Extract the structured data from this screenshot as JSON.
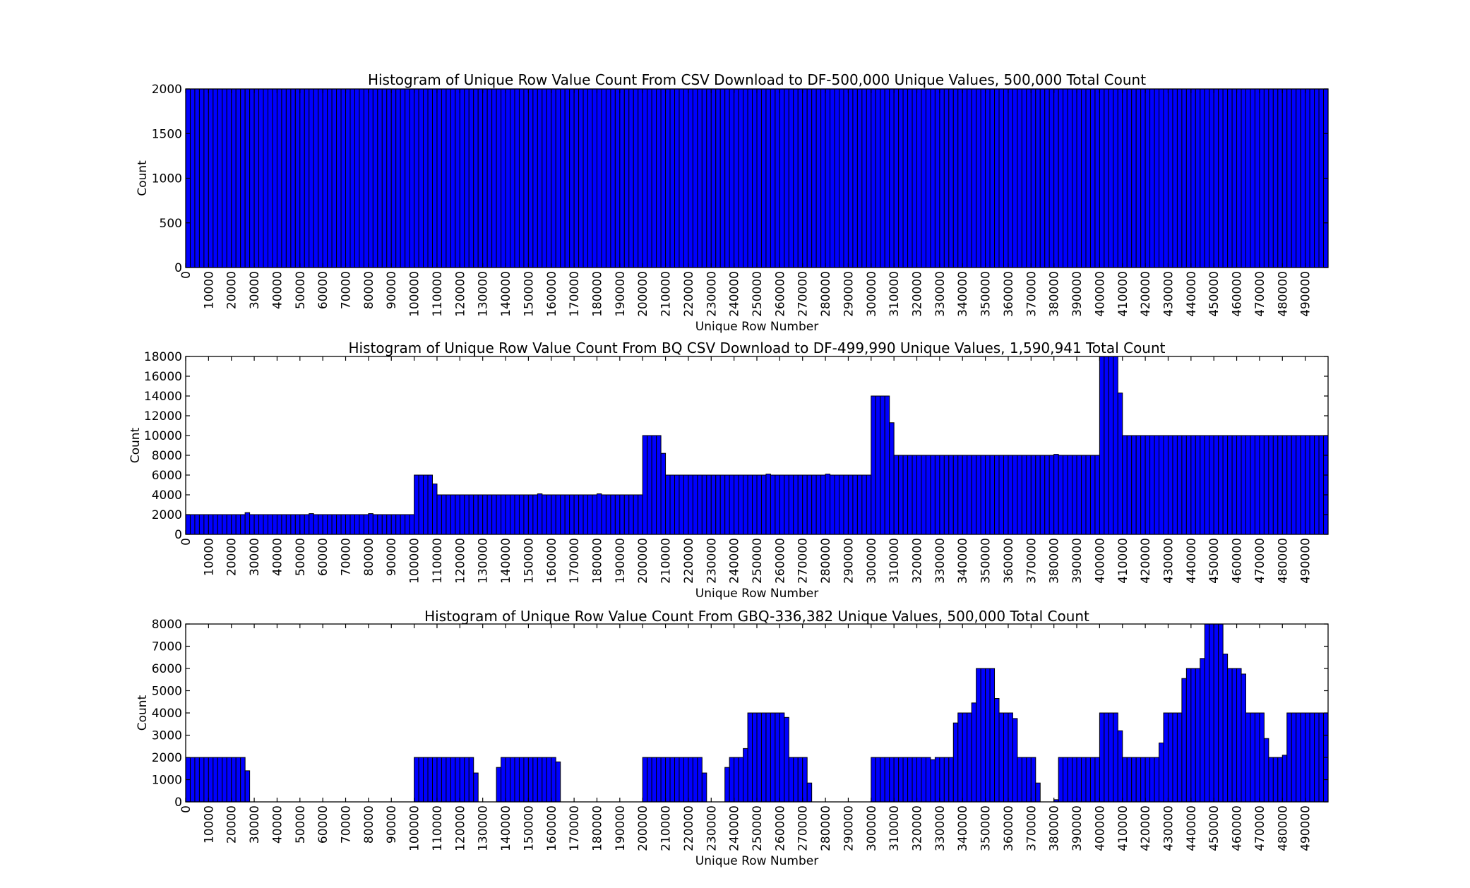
{
  "chart_data": [
    {
      "type": "bar",
      "title": "Histogram of Unique Row Value Count From CSV Download to DF-500,000 Unique Values, 500,000 Total Count",
      "xlabel": "Unique Row Number",
      "ylabel": "Count",
      "xlim": [
        0,
        500000
      ],
      "ylim": [
        0,
        2000
      ],
      "bin_width": 2000,
      "x_ticks": [
        0,
        10000,
        20000,
        30000,
        40000,
        50000,
        60000,
        70000,
        80000,
        90000,
        100000,
        110000,
        120000,
        130000,
        140000,
        150000,
        160000,
        170000,
        180000,
        190000,
        200000,
        210000,
        220000,
        230000,
        240000,
        250000,
        260000,
        270000,
        280000,
        290000,
        300000,
        310000,
        320000,
        330000,
        340000,
        350000,
        360000,
        370000,
        380000,
        390000,
        400000,
        410000,
        420000,
        430000,
        440000,
        450000,
        460000,
        470000,
        480000,
        490000
      ],
      "y_ticks": [
        0,
        500,
        1000,
        1500,
        2000
      ],
      "segments": [
        {
          "from": 0,
          "to": 500000,
          "value": 2000
        }
      ]
    },
    {
      "type": "bar",
      "title": "Histogram of Unique Row Value Count From BQ CSV Download to DF-499,990 Unique Values, 1,590,941 Total Count",
      "xlabel": "Unique Row Number",
      "ylabel": "Count",
      "xlim": [
        0,
        500000
      ],
      "ylim": [
        0,
        18000
      ],
      "bin_width": 2000,
      "x_ticks": [
        0,
        10000,
        20000,
        30000,
        40000,
        50000,
        60000,
        70000,
        80000,
        90000,
        100000,
        110000,
        120000,
        130000,
        140000,
        150000,
        160000,
        170000,
        180000,
        190000,
        200000,
        210000,
        220000,
        230000,
        240000,
        250000,
        260000,
        270000,
        280000,
        290000,
        300000,
        310000,
        320000,
        330000,
        340000,
        350000,
        360000,
        370000,
        380000,
        390000,
        400000,
        410000,
        420000,
        430000,
        440000,
        450000,
        460000,
        470000,
        480000,
        490000
      ],
      "y_ticks": [
        0,
        2000,
        4000,
        6000,
        8000,
        10000,
        12000,
        14000,
        16000,
        18000
      ],
      "segments": [
        {
          "from": 0,
          "to": 26000,
          "value": 2000
        },
        {
          "from": 26000,
          "to": 28000,
          "value": 2200
        },
        {
          "from": 28000,
          "to": 54000,
          "value": 2000
        },
        {
          "from": 54000,
          "to": 56000,
          "value": 2100
        },
        {
          "from": 56000,
          "to": 80000,
          "value": 2000
        },
        {
          "from": 80000,
          "to": 82000,
          "value": 2100
        },
        {
          "from": 82000,
          "to": 100000,
          "value": 2000
        },
        {
          "from": 100000,
          "to": 108000,
          "value": 6000
        },
        {
          "from": 108000,
          "to": 110000,
          "value": 5100
        },
        {
          "from": 110000,
          "to": 154000,
          "value": 4000
        },
        {
          "from": 154000,
          "to": 156000,
          "value": 4100
        },
        {
          "from": 156000,
          "to": 180000,
          "value": 4000
        },
        {
          "from": 180000,
          "to": 182000,
          "value": 4100
        },
        {
          "from": 182000,
          "to": 200000,
          "value": 4000
        },
        {
          "from": 200000,
          "to": 208000,
          "value": 10000
        },
        {
          "from": 208000,
          "to": 210000,
          "value": 8200
        },
        {
          "from": 210000,
          "to": 254000,
          "value": 6000
        },
        {
          "from": 254000,
          "to": 256000,
          "value": 6100
        },
        {
          "from": 256000,
          "to": 280000,
          "value": 6000
        },
        {
          "from": 280000,
          "to": 282000,
          "value": 6100
        },
        {
          "from": 282000,
          "to": 300000,
          "value": 6000
        },
        {
          "from": 300000,
          "to": 308000,
          "value": 14000
        },
        {
          "from": 308000,
          "to": 310000,
          "value": 11300
        },
        {
          "from": 310000,
          "to": 380000,
          "value": 8000
        },
        {
          "from": 380000,
          "to": 382000,
          "value": 8100
        },
        {
          "from": 382000,
          "to": 400000,
          "value": 8000
        },
        {
          "from": 400000,
          "to": 408000,
          "value": 18000
        },
        {
          "from": 408000,
          "to": 410000,
          "value": 14300
        },
        {
          "from": 410000,
          "to": 500000,
          "value": 10000
        }
      ]
    },
    {
      "type": "bar",
      "title": "Histogram of Unique Row Value Count From GBQ-336,382 Unique Values, 500,000 Total Count",
      "xlabel": "Unique Row Number",
      "ylabel": "Count",
      "xlim": [
        0,
        500000
      ],
      "ylim": [
        0,
        8000
      ],
      "bin_width": 2000,
      "x_ticks": [
        0,
        10000,
        20000,
        30000,
        40000,
        50000,
        60000,
        70000,
        80000,
        90000,
        100000,
        110000,
        120000,
        130000,
        140000,
        150000,
        160000,
        170000,
        180000,
        190000,
        200000,
        210000,
        220000,
        230000,
        240000,
        250000,
        260000,
        270000,
        280000,
        290000,
        300000,
        310000,
        320000,
        330000,
        340000,
        350000,
        360000,
        370000,
        380000,
        390000,
        400000,
        410000,
        420000,
        430000,
        440000,
        450000,
        460000,
        470000,
        480000,
        490000
      ],
      "y_ticks": [
        0,
        1000,
        2000,
        3000,
        4000,
        5000,
        6000,
        7000,
        8000
      ],
      "segments": [
        {
          "from": 0,
          "to": 26000,
          "value": 2000
        },
        {
          "from": 26000,
          "to": 28000,
          "value": 1400
        },
        {
          "from": 100000,
          "to": 126000,
          "value": 2000
        },
        {
          "from": 126000,
          "to": 128000,
          "value": 1300
        },
        {
          "from": 136000,
          "to": 138000,
          "value": 1550
        },
        {
          "from": 138000,
          "to": 162000,
          "value": 2000
        },
        {
          "from": 162000,
          "to": 164000,
          "value": 1800
        },
        {
          "from": 200000,
          "to": 226000,
          "value": 2000
        },
        {
          "from": 226000,
          "to": 228000,
          "value": 1300
        },
        {
          "from": 236000,
          "to": 238000,
          "value": 1550
        },
        {
          "from": 238000,
          "to": 244000,
          "value": 2000
        },
        {
          "from": 244000,
          "to": 246000,
          "value": 2400
        },
        {
          "from": 246000,
          "to": 262000,
          "value": 4000
        },
        {
          "from": 262000,
          "to": 264000,
          "value": 3800
        },
        {
          "from": 264000,
          "to": 272000,
          "value": 2000
        },
        {
          "from": 272000,
          "to": 274000,
          "value": 850
        },
        {
          "from": 300000,
          "to": 326000,
          "value": 2000
        },
        {
          "from": 326000,
          "to": 328000,
          "value": 1900
        },
        {
          "from": 328000,
          "to": 336000,
          "value": 2000
        },
        {
          "from": 336000,
          "to": 338000,
          "value": 3550
        },
        {
          "from": 338000,
          "to": 344000,
          "value": 4000
        },
        {
          "from": 344000,
          "to": 346000,
          "value": 4450
        },
        {
          "from": 346000,
          "to": 354000,
          "value": 6000
        },
        {
          "from": 354000,
          "to": 356000,
          "value": 4650
        },
        {
          "from": 356000,
          "to": 362000,
          "value": 4000
        },
        {
          "from": 362000,
          "to": 364000,
          "value": 3750
        },
        {
          "from": 364000,
          "to": 372000,
          "value": 2000
        },
        {
          "from": 372000,
          "to": 374000,
          "value": 850
        },
        {
          "from": 380000,
          "to": 382000,
          "value": 100
        },
        {
          "from": 382000,
          "to": 400000,
          "value": 2000
        },
        {
          "from": 400000,
          "to": 408000,
          "value": 4000
        },
        {
          "from": 408000,
          "to": 410000,
          "value": 3200
        },
        {
          "from": 410000,
          "to": 426000,
          "value": 2000
        },
        {
          "from": 426000,
          "to": 428000,
          "value": 2650
        },
        {
          "from": 428000,
          "to": 436000,
          "value": 4000
        },
        {
          "from": 436000,
          "to": 438000,
          "value": 5550
        },
        {
          "from": 438000,
          "to": 444000,
          "value": 6000
        },
        {
          "from": 444000,
          "to": 446000,
          "value": 6450
        },
        {
          "from": 446000,
          "to": 454000,
          "value": 8000
        },
        {
          "from": 454000,
          "to": 456000,
          "value": 6650
        },
        {
          "from": 456000,
          "to": 462000,
          "value": 6000
        },
        {
          "from": 462000,
          "to": 464000,
          "value": 5750
        },
        {
          "from": 464000,
          "to": 472000,
          "value": 4000
        },
        {
          "from": 472000,
          "to": 474000,
          "value": 2850
        },
        {
          "from": 474000,
          "to": 480000,
          "value": 2000
        },
        {
          "from": 480000,
          "to": 482000,
          "value": 2100
        },
        {
          "from": 482000,
          "to": 500000,
          "value": 4000
        }
      ]
    }
  ]
}
